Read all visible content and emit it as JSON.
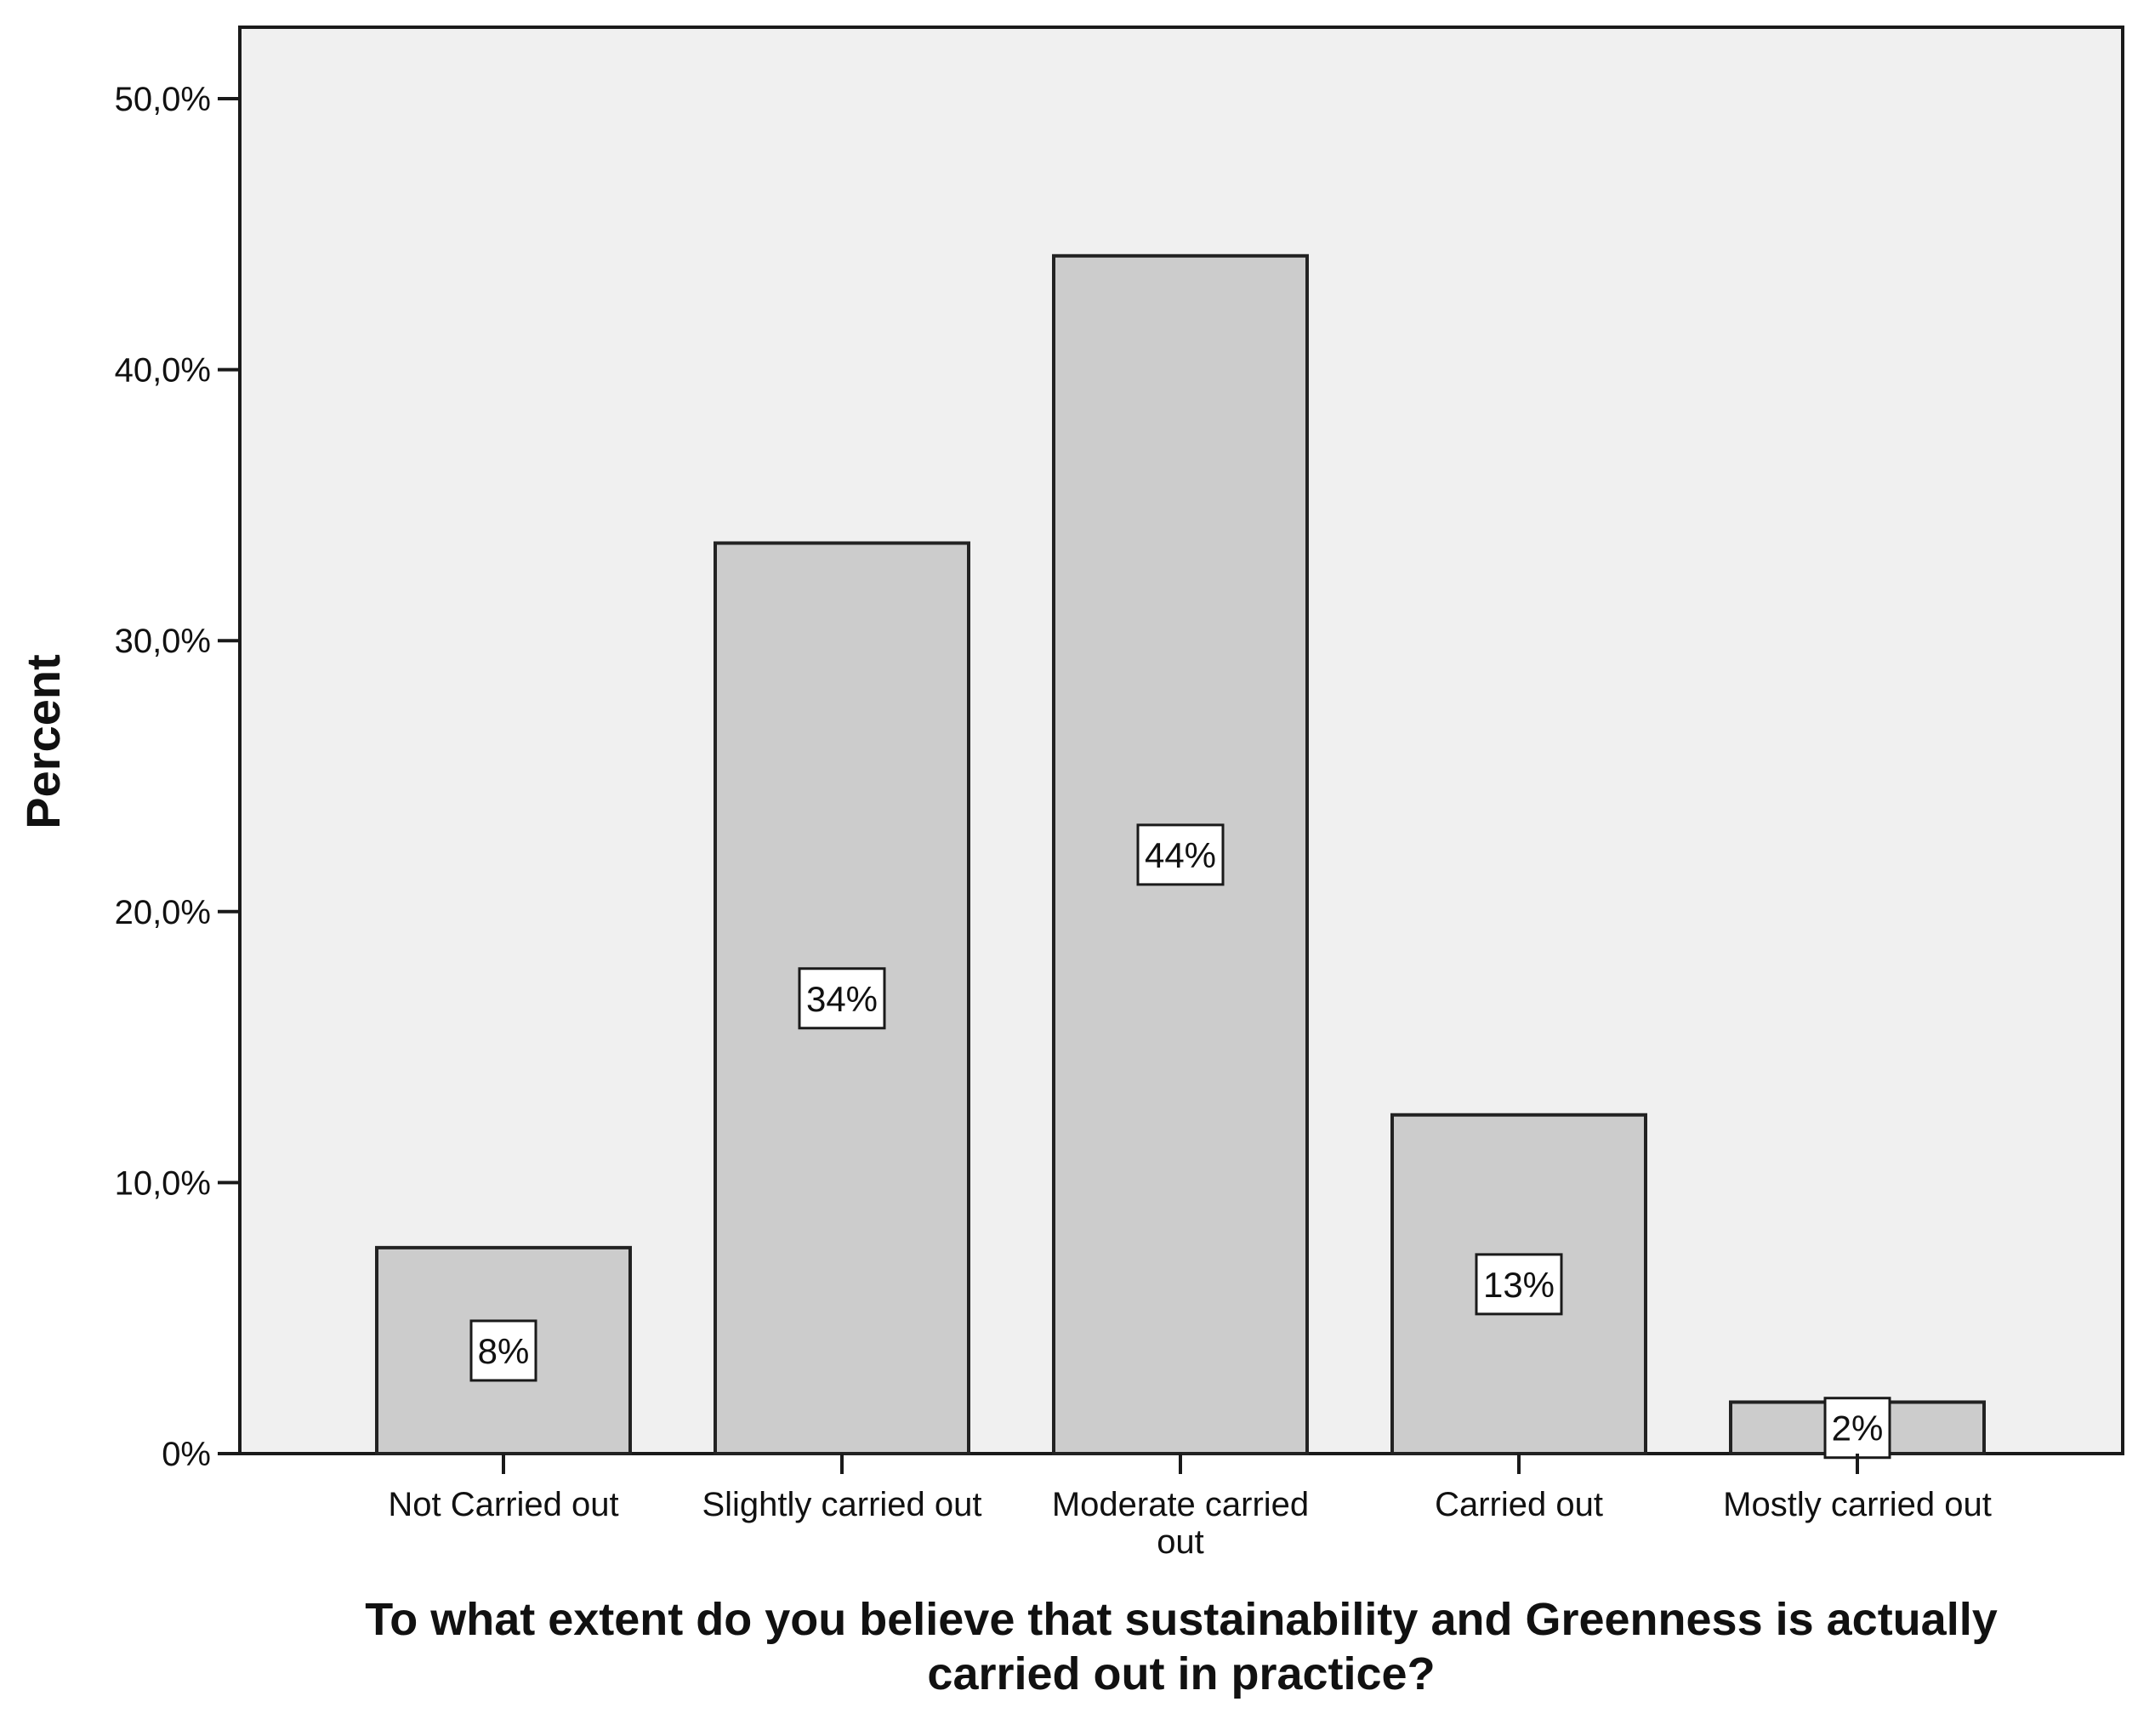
{
  "chart_data": {
    "type": "bar",
    "title": "",
    "xlabel": "To what extent do you believe that sustainability and Greenness is actually carried out in practice?",
    "ylabel": "Percent",
    "categories": [
      "Not Carried out",
      "Slightly carried out",
      "Moderate carried out",
      "Carried out",
      "Mostly carried out"
    ],
    "values": [
      7.6,
      33.6,
      44.2,
      12.5,
      1.9
    ],
    "data_labels": [
      "8%",
      "34%",
      "44%",
      "13%",
      "2%"
    ],
    "ylim": [
      0,
      50
    ],
    "yticks": [
      0,
      10,
      20,
      30,
      40,
      50
    ],
    "ytick_labels": [
      "0%",
      "10,0%",
      "20,0%",
      "30,0%",
      "40,0%",
      "50,0%"
    ],
    "grid": false,
    "legend": "none",
    "colors": {
      "bar_fill": "#cccccc",
      "bar_stroke": "#222222",
      "plot_background": "#f0f0f0",
      "label_box_fill": "#ffffff"
    }
  }
}
